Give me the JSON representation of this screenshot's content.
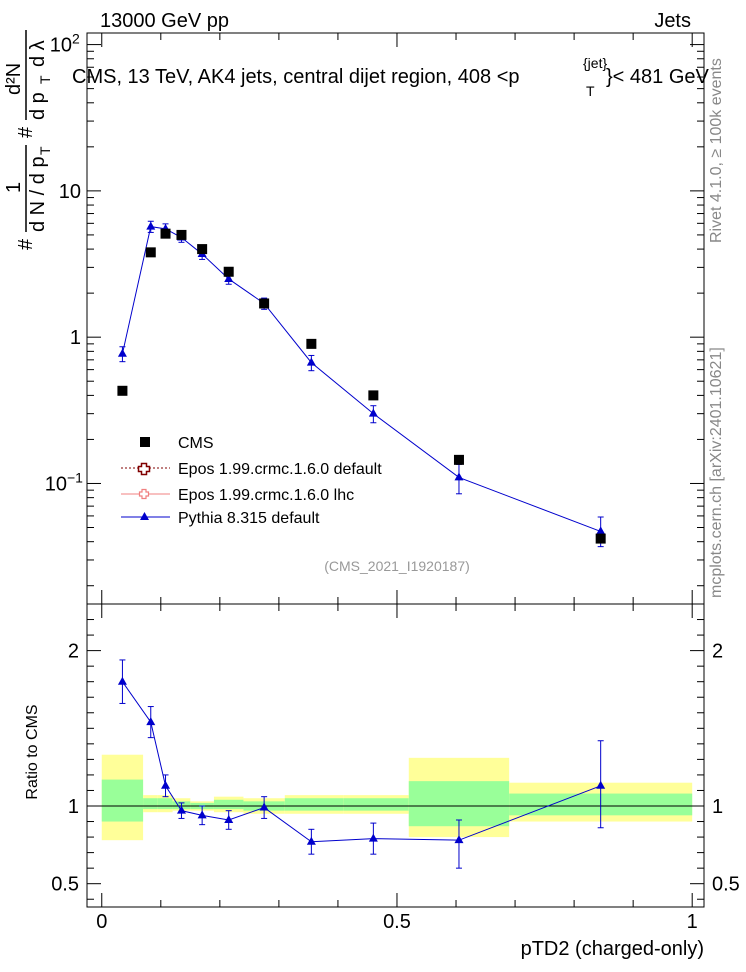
{
  "header": {
    "left": "13000 GeV pp",
    "right": "Jets"
  },
  "side_labels": {
    "rivet": "Rivet 4.1.0, ≥ 100k events",
    "mcplots": "mcplots.cern.ch [arXiv:2401.10621]"
  },
  "chart_data": {
    "type": "line",
    "title": "CMS, 13 TeV, AK4 jets, central dijet region, 408 <p",
    "title_sup": "{jet}",
    "title_sub": "T",
    "title_end": "}< 481 GeV",
    "analysis_id": "(CMS_2021_I1920187)",
    "ylabel_parts": {
      "hash1": "#",
      "frac1_num": "1",
      "frac1_den": "d N / d p",
      "frac1_den_sub": "T",
      "hash2": "#",
      "frac2_num": "d²N",
      "frac2_den": "d p",
      "frac2_den_sub": "T",
      "frac2_den_end": "d λ"
    },
    "xlabel": "pTD2 (charged-only)",
    "ratio_ylabel": "Ratio to CMS",
    "xlim": [
      -0.025,
      1.02
    ],
    "ylim": [
      0.015,
      120
    ],
    "yscale": "log",
    "ratio_ylim": [
      0.35,
      2.3
    ],
    "x_ticks": [
      {
        "v": 0,
        "label": "0"
      },
      {
        "v": 0.5,
        "label": "0.5"
      },
      {
        "v": 1,
        "label": "1"
      }
    ],
    "y_ticks": [
      {
        "v": 0.1,
        "label": "10",
        "sup": "−1"
      },
      {
        "v": 1,
        "label": "1"
      },
      {
        "v": 10,
        "label": "10"
      },
      {
        "v": 100,
        "label": "10",
        "sup": "2"
      }
    ],
    "ratio_ticks": [
      {
        "v": 0.5,
        "label": "0.5"
      },
      {
        "v": 1,
        "label": "1"
      },
      {
        "v": 2,
        "label": "2"
      }
    ],
    "bins": [
      {
        "lo": 0.0,
        "hi": 0.07,
        "band_inner": [
          0.9,
          1.17
        ],
        "band_outer": [
          0.78,
          1.33
        ]
      },
      {
        "lo": 0.07,
        "hi": 0.095,
        "band_inner": [
          0.98,
          1.05
        ],
        "band_outer": [
          0.96,
          1.07
        ]
      },
      {
        "lo": 0.095,
        "hi": 0.12,
        "band_inner": [
          0.98,
          1.05
        ],
        "band_outer": [
          0.96,
          1.07
        ]
      },
      {
        "lo": 0.12,
        "hi": 0.15,
        "band_inner": [
          0.98,
          1.03
        ],
        "band_outer": [
          0.97,
          1.05
        ]
      },
      {
        "lo": 0.15,
        "hi": 0.19,
        "band_inner": [
          0.98,
          1.02
        ],
        "band_outer": [
          0.97,
          1.03
        ]
      },
      {
        "lo": 0.19,
        "hi": 0.24,
        "band_inner": [
          0.98,
          1.04
        ],
        "band_outer": [
          0.96,
          1.06
        ]
      },
      {
        "lo": 0.24,
        "hi": 0.31,
        "band_inner": [
          0.97,
          1.03
        ],
        "band_outer": [
          0.95,
          1.05
        ]
      },
      {
        "lo": 0.31,
        "hi": 0.41,
        "band_inner": [
          0.97,
          1.05
        ],
        "band_outer": [
          0.95,
          1.07
        ]
      },
      {
        "lo": 0.41,
        "hi": 0.52,
        "band_inner": [
          0.97,
          1.05
        ],
        "band_outer": [
          0.95,
          1.07
        ]
      },
      {
        "lo": 0.52,
        "hi": 0.69,
        "band_inner": [
          0.87,
          1.16
        ],
        "band_outer": [
          0.8,
          1.31
        ]
      },
      {
        "lo": 0.69,
        "hi": 1.0,
        "band_inner": [
          0.94,
          1.08
        ],
        "band_outer": [
          0.9,
          1.15
        ]
      }
    ],
    "series": [
      {
        "name": "CMS",
        "style": "data",
        "color": "#000000",
        "x": [
          0.035,
          0.083,
          0.108,
          0.135,
          0.17,
          0.215,
          0.275,
          0.355,
          0.46,
          0.605,
          0.845
        ],
        "y": [
          0.43,
          3.8,
          5.1,
          5.0,
          4.0,
          2.8,
          1.7,
          0.9,
          0.4,
          0.145,
          0.042
        ]
      },
      {
        "name": "Epos 1.99.crmc.1.6.0 default",
        "style": "legend-only",
        "color": "#800000"
      },
      {
        "name": "Epos 1.99.crmc.1.6.0 lhc",
        "style": "legend-only",
        "color": "#f08080"
      },
      {
        "name": "Pythia 8.315 default",
        "style": "mc",
        "color": "#0000cc",
        "x": [
          0.035,
          0.083,
          0.108,
          0.135,
          0.17,
          0.215,
          0.275,
          0.355,
          0.46,
          0.605,
          0.845
        ],
        "y": [
          0.77,
          5.7,
          5.5,
          4.8,
          3.7,
          2.5,
          1.7,
          0.67,
          0.3,
          0.11,
          0.047
        ],
        "y_err_lo": [
          0.09,
          0.5,
          0.45,
          0.35,
          0.3,
          0.2,
          0.15,
          0.08,
          0.04,
          0.025,
          0.01
        ],
        "y_err_hi": [
          0.09,
          0.5,
          0.45,
          0.35,
          0.3,
          0.2,
          0.15,
          0.08,
          0.04,
          0.025,
          0.012
        ],
        "ratio": [
          1.8,
          1.54,
          1.13,
          0.97,
          0.94,
          0.91,
          0.99,
          0.77,
          0.79,
          0.78,
          1.13
        ],
        "ratio_err_lo": [
          0.14,
          0.1,
          0.07,
          0.05,
          0.06,
          0.06,
          0.07,
          0.08,
          0.1,
          0.18,
          0.27
        ],
        "ratio_err_hi": [
          0.14,
          0.1,
          0.07,
          0.05,
          0.06,
          0.06,
          0.07,
          0.08,
          0.1,
          0.13,
          0.29
        ]
      }
    ]
  }
}
